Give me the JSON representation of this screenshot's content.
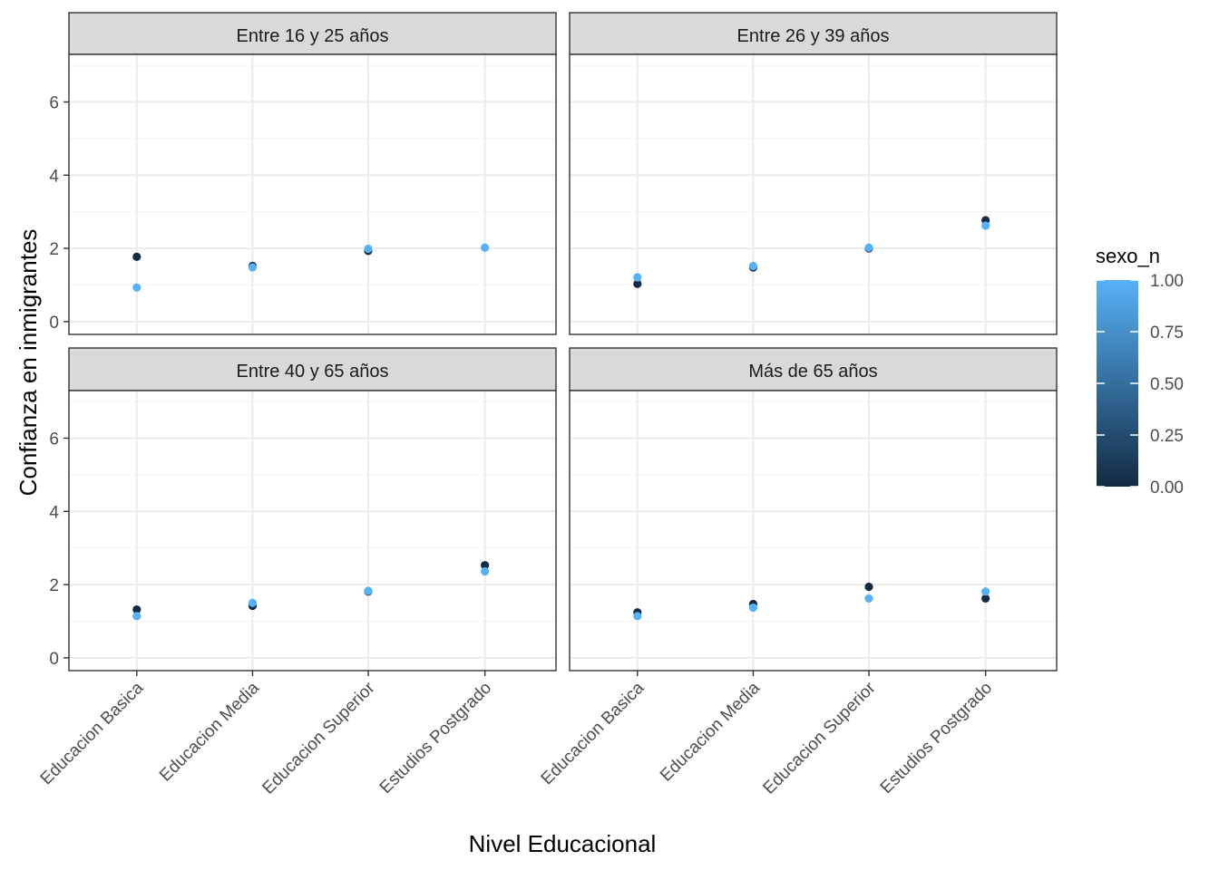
{
  "chart_data": {
    "type": "scatter",
    "xlabel": "Nivel Educacional",
    "ylabel": "Confianza en inmigrantes",
    "categories": [
      "Educacion Basica",
      "Educacion Media",
      "Educacion Superior",
      "Estudios Postgrado"
    ],
    "ylim": [
      -0.35,
      7.3
    ],
    "y_ticks": [
      0,
      2,
      4,
      6
    ],
    "grid": true,
    "legend": {
      "title": "sexo_n",
      "position": "right",
      "ticks": [
        "0.00",
        "0.25",
        "0.50",
        "0.75",
        "1.00"
      ],
      "color_low": "#132B43",
      "color_high": "#56B1F7"
    },
    "facets": [
      {
        "title": "Entre 16 y 25 años",
        "points": [
          {
            "x": "Educacion Basica",
            "y": 1.77,
            "sexo_n": 0
          },
          {
            "x": "Educacion Basica",
            "y": 0.93,
            "sexo_n": 1
          },
          {
            "x": "Educacion Media",
            "y": 1.52,
            "sexo_n": 0
          },
          {
            "x": "Educacion Media",
            "y": 1.48,
            "sexo_n": 1
          },
          {
            "x": "Educacion Superior",
            "y": 1.93,
            "sexo_n": 0
          },
          {
            "x": "Educacion Superior",
            "y": 1.99,
            "sexo_n": 1
          },
          {
            "x": "Estudios Postgrado",
            "y": 2.02,
            "sexo_n": 1
          }
        ]
      },
      {
        "title": "Entre 26 y 39 años",
        "points": [
          {
            "x": "Educacion Basica",
            "y": 1.03,
            "sexo_n": 0
          },
          {
            "x": "Educacion Basica",
            "y": 1.21,
            "sexo_n": 1
          },
          {
            "x": "Educacion Media",
            "y": 1.48,
            "sexo_n": 0
          },
          {
            "x": "Educacion Media",
            "y": 1.52,
            "sexo_n": 1
          },
          {
            "x": "Educacion Superior",
            "y": 2.0,
            "sexo_n": 0
          },
          {
            "x": "Educacion Superior",
            "y": 2.02,
            "sexo_n": 1
          },
          {
            "x": "Estudios Postgrado",
            "y": 2.77,
            "sexo_n": 0
          },
          {
            "x": "Estudios Postgrado",
            "y": 2.62,
            "sexo_n": 1
          }
        ]
      },
      {
        "title": "Entre 40 y 65 años",
        "points": [
          {
            "x": "Educacion Basica",
            "y": 1.32,
            "sexo_n": 0
          },
          {
            "x": "Educacion Basica",
            "y": 1.14,
            "sexo_n": 1
          },
          {
            "x": "Educacion Media",
            "y": 1.42,
            "sexo_n": 0
          },
          {
            "x": "Educacion Media",
            "y": 1.5,
            "sexo_n": 1
          },
          {
            "x": "Educacion Superior",
            "y": 1.81,
            "sexo_n": 0
          },
          {
            "x": "Educacion Superior",
            "y": 1.83,
            "sexo_n": 1
          },
          {
            "x": "Estudios Postgrado",
            "y": 2.53,
            "sexo_n": 0
          },
          {
            "x": "Estudios Postgrado",
            "y": 2.36,
            "sexo_n": 1
          }
        ]
      },
      {
        "title": "Más de 65 años",
        "points": [
          {
            "x": "Educacion Basica",
            "y": 1.24,
            "sexo_n": 0
          },
          {
            "x": "Educacion Basica",
            "y": 1.14,
            "sexo_n": 1
          },
          {
            "x": "Educacion Media",
            "y": 1.47,
            "sexo_n": 0
          },
          {
            "x": "Educacion Media",
            "y": 1.37,
            "sexo_n": 1
          },
          {
            "x": "Educacion Superior",
            "y": 1.94,
            "sexo_n": 0
          },
          {
            "x": "Educacion Superior",
            "y": 1.62,
            "sexo_n": 1
          },
          {
            "x": "Estudios Postgrado",
            "y": 1.62,
            "sexo_n": 0
          },
          {
            "x": "Estudios Postgrado",
            "y": 1.81,
            "sexo_n": 1
          }
        ]
      }
    ]
  }
}
